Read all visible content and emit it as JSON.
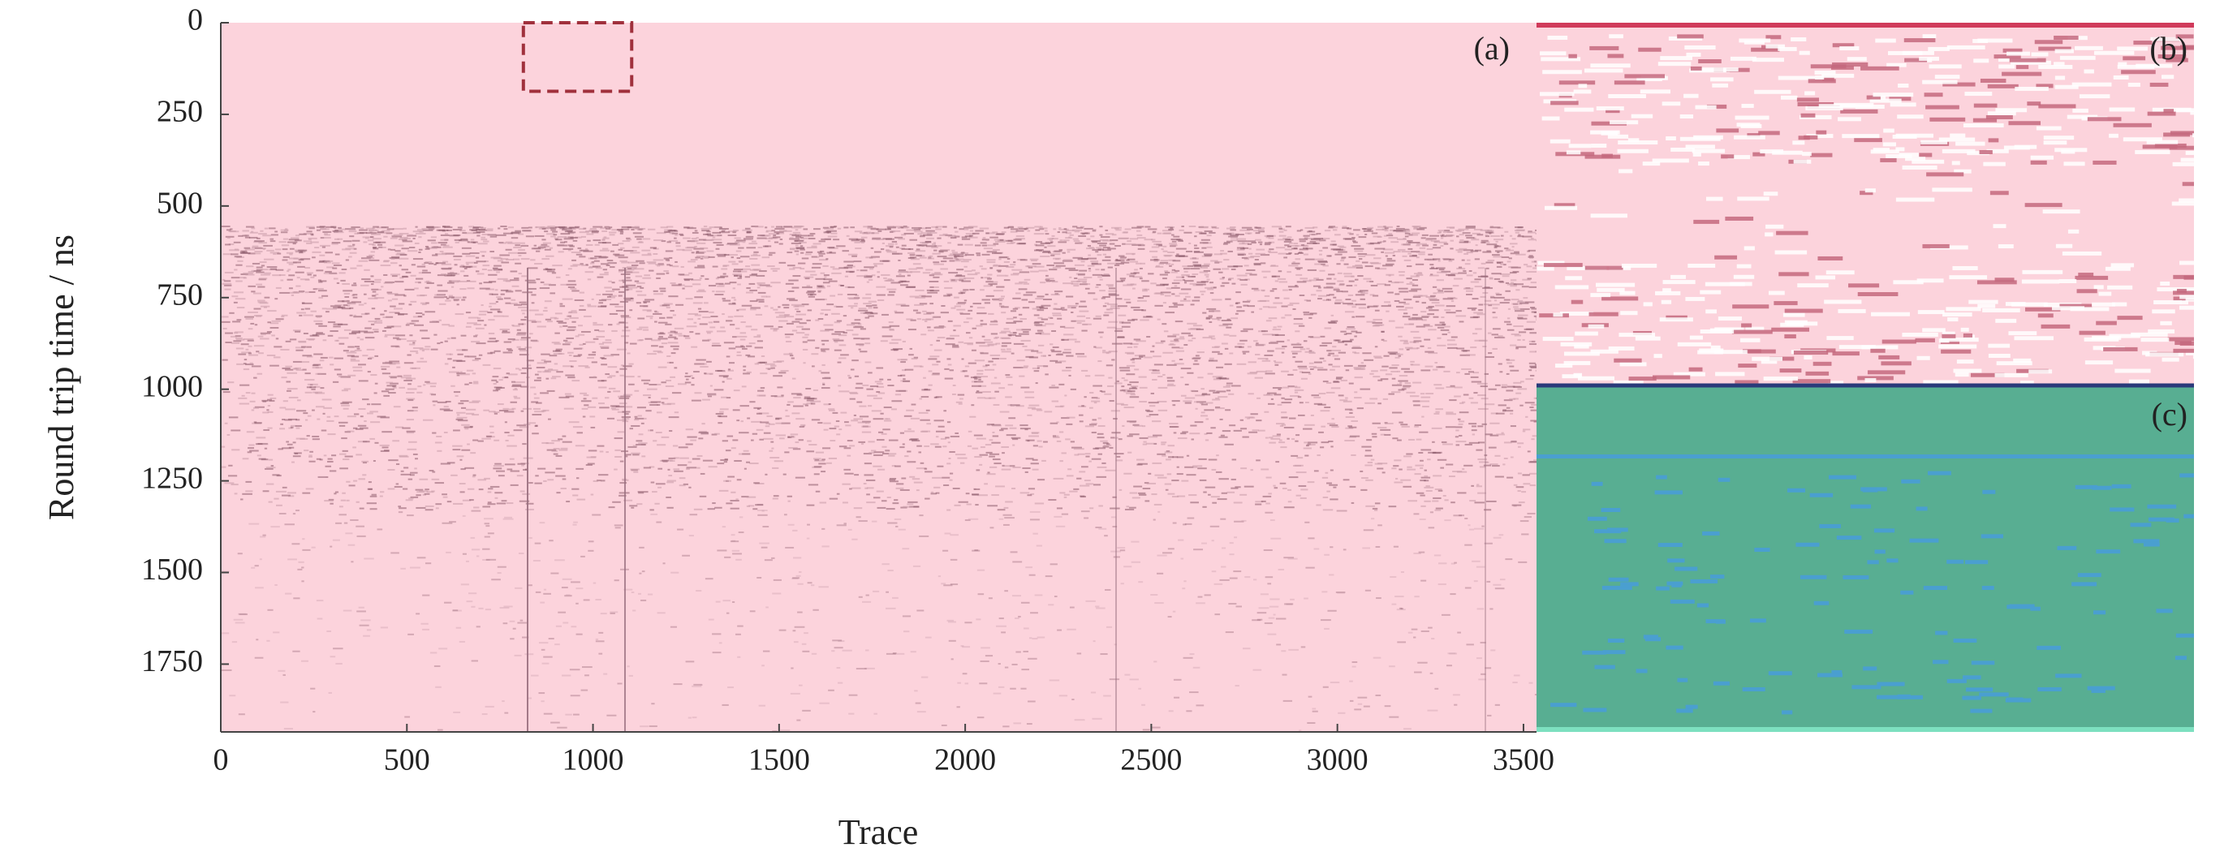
{
  "chart_data": {
    "type": "image",
    "xlabel": "Trace",
    "ylabel": "Round trip time / ns",
    "panels": [
      "(a)",
      "(b)",
      "(c)"
    ],
    "xlim": [
      0,
      3535
    ],
    "xticks": [
      0,
      500,
      1000,
      1500,
      2000,
      2500,
      3000,
      3500
    ],
    "ylim": [
      0,
      1935
    ],
    "y_inverted": true,
    "yticks": [
      0,
      250,
      500,
      750,
      1000,
      1250,
      1500,
      1750
    ],
    "highlight_box": {
      "x": [
        813,
        1104
      ],
      "y": [
        0,
        187
      ],
      "color": "#a0303c"
    }
  }
}
